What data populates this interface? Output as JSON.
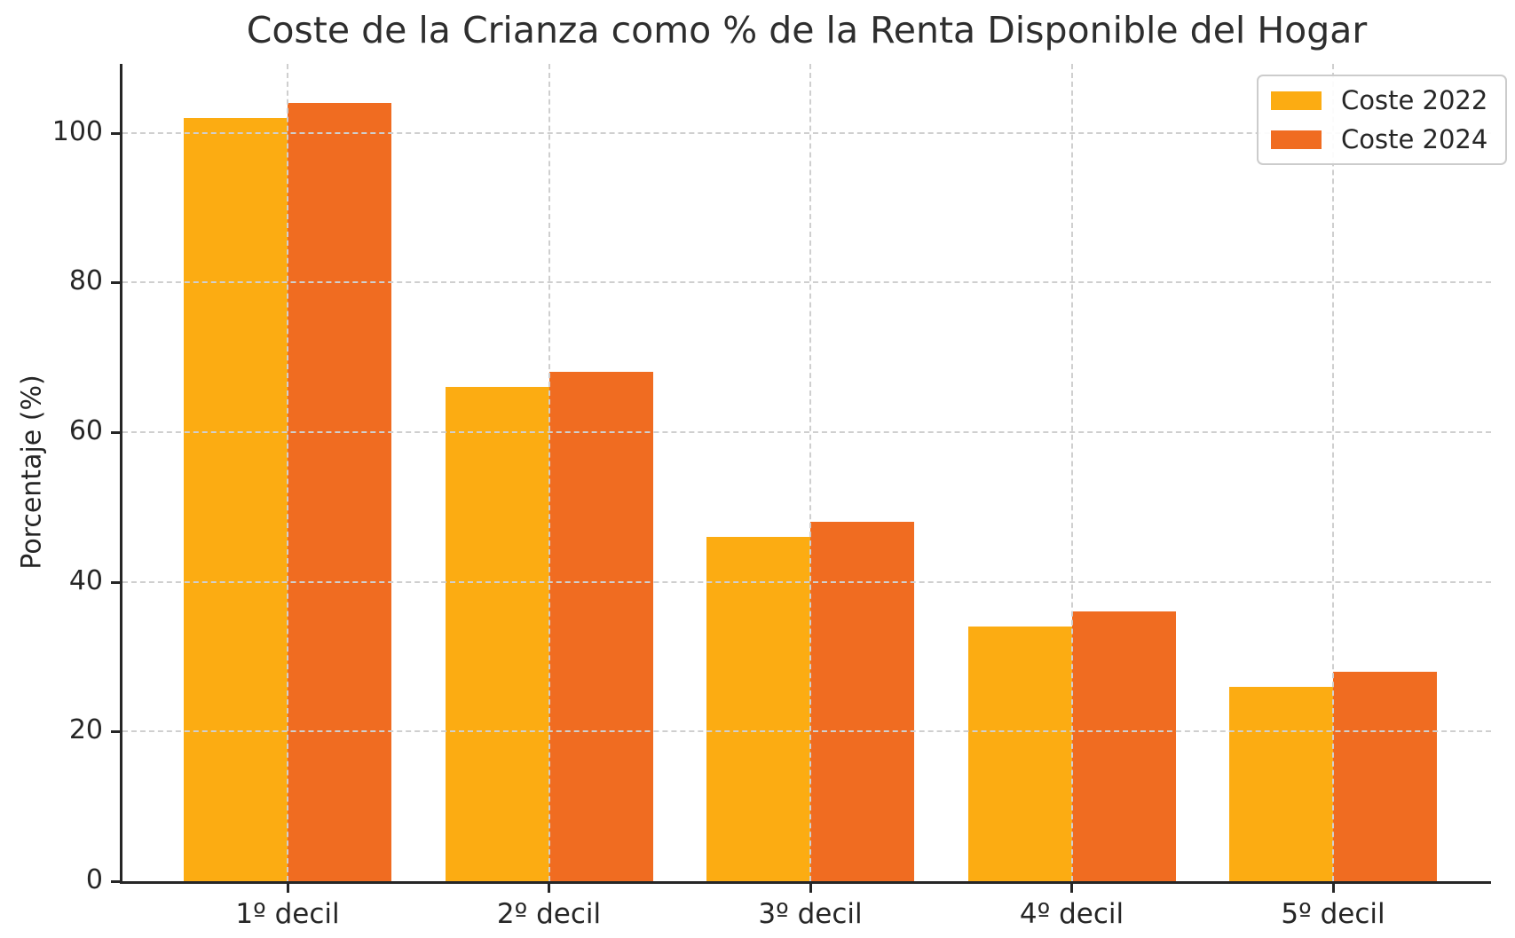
{
  "chart_data": {
    "type": "bar",
    "title": "Coste de la Crianza como % de la Renta Disponible del Hogar",
    "xlabel": "",
    "ylabel": "Porcentaje (%)",
    "categories": [
      "1º decil",
      "2º decil",
      "3º decil",
      "4º decil",
      "5º decil"
    ],
    "series": [
      {
        "name": "Coste 2022",
        "color": "#FCAC12",
        "values": [
          102,
          66,
          46,
          34,
          26
        ]
      },
      {
        "name": "Coste 2024",
        "color": "#F06C21",
        "values": [
          104,
          68,
          48,
          36,
          28
        ]
      }
    ],
    "ylim": [
      0,
      109.2
    ],
    "yticks": [
      0,
      20,
      40,
      60,
      80,
      100
    ],
    "grid": "dashed horizontal and vertical, drawn above bars",
    "legend_position": "upper right",
    "bar_width_fraction": 0.4
  },
  "colors": {
    "background": "#ffffff",
    "axis": "#262626",
    "grid": "#cfcfcf",
    "text": "#2e2e2e",
    "legend_border": "#cccccc"
  }
}
